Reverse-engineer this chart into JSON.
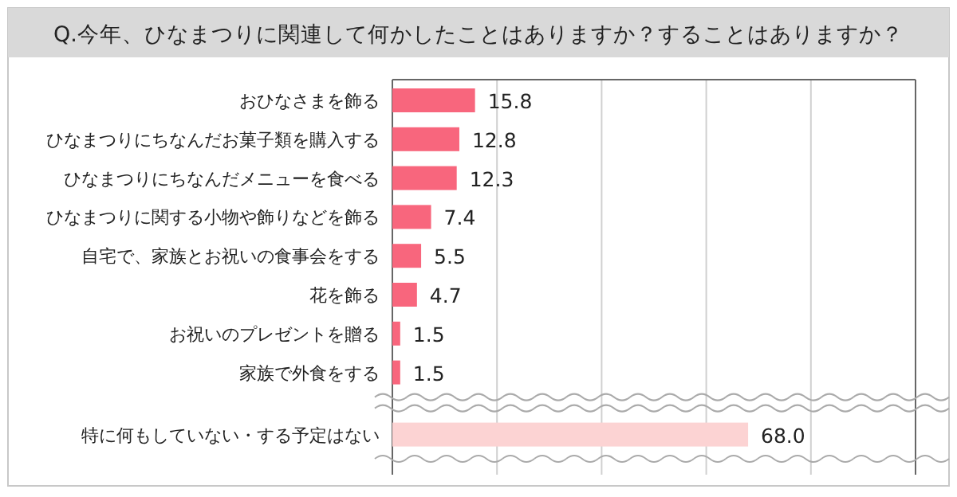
{
  "chart_data": {
    "type": "bar",
    "orientation": "horizontal",
    "title": "Q.今年、ひなまつりに関連して何かしたことはありますか？することはありますか？",
    "categories": [
      "おひなさまを飾る",
      "ひなまつりにちなんだお菓子類を購入する",
      "ひなまつりにちなんだメニューを食べる",
      "ひなまつりに関する小物や飾りなどを飾る",
      "自宅で、家族とお祝いの食事会をする",
      "花を飾る",
      "お祝いのプレゼントを贈る",
      "家族で外食をする",
      "特に何もしていない・する予定はない"
    ],
    "values": [
      15.8,
      12.8,
      12.3,
      7.4,
      5.5,
      4.7,
      1.5,
      1.5,
      68.0
    ],
    "value_labels": [
      "15.8",
      "12.8",
      "12.3",
      "7.4",
      "5.5",
      "4.7",
      "1.5",
      "1.5",
      "68.0"
    ],
    "colors": [
      "#f8667d",
      "#f8667d",
      "#f8667d",
      "#f8667d",
      "#f8667d",
      "#f8667d",
      "#f8667d",
      "#f8667d",
      "#fcd3d3"
    ],
    "xlim": [
      0,
      100
    ],
    "xticks": [
      {
        "value": 0,
        "label": null
      },
      {
        "value": 20,
        "label": null
      },
      {
        "value": 40,
        "label": null
      },
      {
        "value": 60,
        "label": null
      },
      {
        "value": 80,
        "label": null
      },
      {
        "value": 100,
        "label": null
      }
    ],
    "tick_labels": "y",
    "grid": "x"
  }
}
